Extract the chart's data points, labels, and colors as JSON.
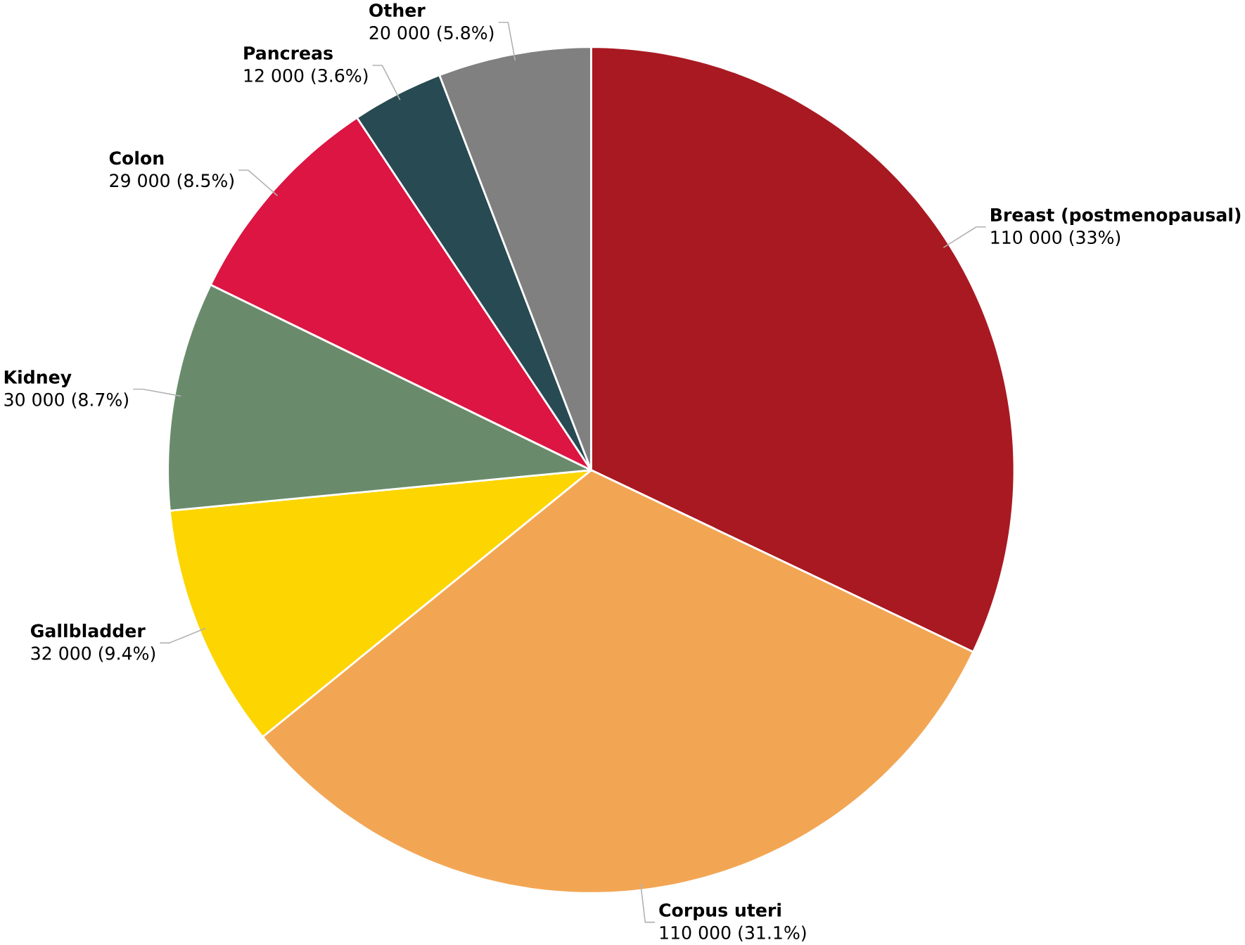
{
  "chart_data": {
    "type": "pie",
    "categories": [
      "Breast (postmenopausal)",
      "Corpus uteri",
      "Gallbladder",
      "Kidney",
      "Colon",
      "Pancreas",
      "Other"
    ],
    "values": [
      110000,
      110000,
      32000,
      30000,
      29000,
      12000,
      20000
    ],
    "value_labels": [
      "110 000 (33%)",
      "110 000 (31.1%)",
      "32 000 (9.4%)",
      "30 000 (8.7%)",
      "29 000 (8.5%)",
      "12 000 (3.6%)",
      "20 000 (5.8%)"
    ],
    "colors": [
      "#a91922",
      "#f2a654",
      "#fdd500",
      "#6a8b6b",
      "#dc1543",
      "#284a52",
      "#808080"
    ]
  }
}
